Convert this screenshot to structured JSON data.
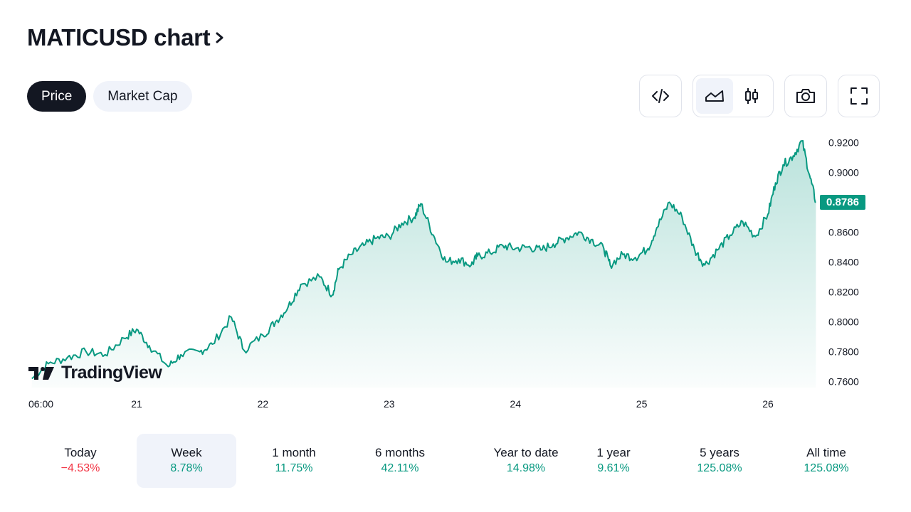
{
  "header": {
    "title": "MATICUSD chart"
  },
  "toggle": {
    "price_label": "Price",
    "market_cap_label": "Market Cap"
  },
  "toolbar": {
    "embed_icon": "code-icon",
    "area_icon": "area-chart-icon",
    "candles_icon": "candlestick-icon",
    "snapshot_icon": "camera-icon",
    "fullscreen_icon": "fullscreen-icon"
  },
  "colors": {
    "line": "#089981",
    "fill": "#089981",
    "negative": "#f23645",
    "text": "#131722"
  },
  "brand": {
    "logo_text": "TradingView"
  },
  "current_price": "0.8786",
  "chart_data": {
    "type": "area",
    "title": "",
    "xlabel": "",
    "ylabel": "",
    "x_tick_labels": [
      "06:00",
      "21",
      "22",
      "23",
      "24",
      "25",
      "26"
    ],
    "y_tick_labels": [
      "0.9200",
      "0.9000",
      "0.8800",
      "0.8600",
      "0.8400",
      "0.8200",
      "0.8000",
      "0.7800",
      "0.7600"
    ],
    "ylim": [
      0.756,
      0.923
    ],
    "grid": false,
    "x_unit": "day offset from 20th (Jan) 00:00",
    "series": [
      {
        "x": [
          0.17,
          0.3,
          0.45,
          0.6,
          0.75,
          0.9,
          1.0,
          1.1,
          1.25,
          1.35,
          1.5,
          1.6,
          1.75,
          1.85,
          2.0,
          2.1,
          2.2,
          2.3,
          2.45,
          2.55,
          2.6,
          2.7,
          2.8,
          2.9,
          3.0,
          3.1,
          3.2,
          3.25,
          3.35,
          3.45,
          3.55,
          3.65,
          3.7,
          3.8,
          3.9,
          4.0,
          4.1,
          4.2,
          4.3,
          4.4,
          4.5,
          4.6,
          4.7,
          4.75,
          4.85,
          4.95,
          5.05,
          5.12,
          5.22,
          5.32,
          5.42,
          5.5,
          5.6,
          5.7,
          5.8,
          5.9,
          6.0,
          6.06,
          6.12,
          6.2,
          6.27,
          6.33,
          6.38
        ],
        "y": [
          0.762,
          0.772,
          0.776,
          0.78,
          0.778,
          0.789,
          0.795,
          0.784,
          0.77,
          0.778,
          0.78,
          0.785,
          0.803,
          0.781,
          0.791,
          0.8,
          0.81,
          0.825,
          0.83,
          0.818,
          0.835,
          0.845,
          0.851,
          0.856,
          0.857,
          0.866,
          0.87,
          0.879,
          0.858,
          0.84,
          0.842,
          0.838,
          0.844,
          0.846,
          0.851,
          0.849,
          0.85,
          0.848,
          0.852,
          0.856,
          0.86,
          0.855,
          0.849,
          0.838,
          0.845,
          0.843,
          0.849,
          0.863,
          0.88,
          0.87,
          0.848,
          0.838,
          0.848,
          0.858,
          0.867,
          0.857,
          0.872,
          0.893,
          0.905,
          0.911,
          0.921,
          0.898,
          0.88
        ]
      }
    ]
  },
  "periods": [
    {
      "label": "Today",
      "value": "−4.53%",
      "sign": "neg"
    },
    {
      "label": "Week",
      "value": "8.78%",
      "sign": "pos"
    },
    {
      "label": "1 month",
      "value": "11.75%",
      "sign": "pos"
    },
    {
      "label": "6 months",
      "value": "42.11%",
      "sign": "pos"
    },
    {
      "label": "Year to date",
      "value": "14.98%",
      "sign": "pos"
    },
    {
      "label": "1 year",
      "value": "9.61%",
      "sign": "pos"
    },
    {
      "label": "5 years",
      "value": "125.08%",
      "sign": "pos"
    },
    {
      "label": "All time",
      "value": "125.08%",
      "sign": "pos"
    }
  ]
}
